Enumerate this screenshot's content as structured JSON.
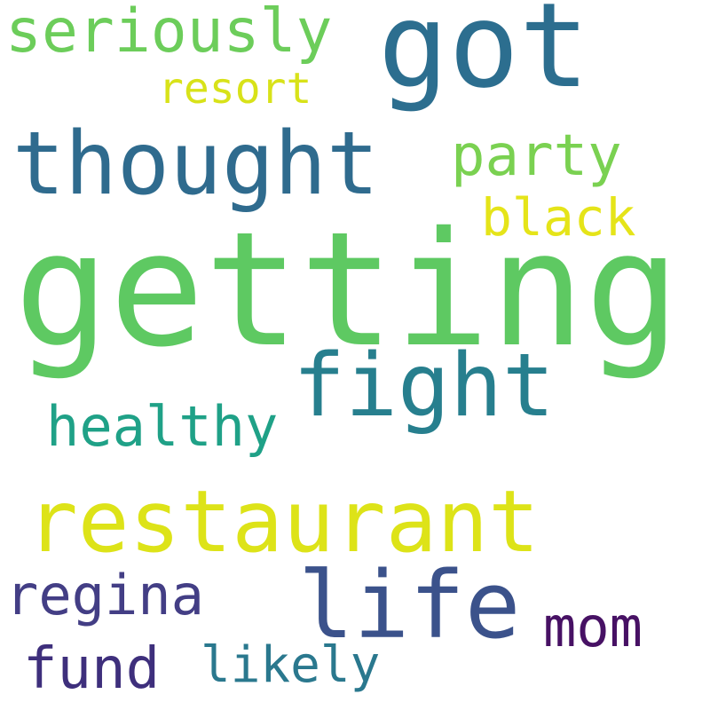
{
  "words": {
    "getting": {
      "text": "getting",
      "color": "#5ec962"
    },
    "got": {
      "text": "got",
      "color": "#2c6e8f"
    },
    "thought": {
      "text": "thought",
      "color": "#2f6b8e"
    },
    "restaurant": {
      "text": "restaurant",
      "color": "#dde318"
    },
    "life": {
      "text": "life",
      "color": "#3b528b"
    },
    "fight": {
      "text": "fight",
      "color": "#277f8e"
    },
    "seriously": {
      "text": "seriously",
      "color": "#6ccd5a"
    },
    "party": {
      "text": "party",
      "color": "#7ad151"
    },
    "healthy": {
      "text": "healthy",
      "color": "#1fa187"
    },
    "regina": {
      "text": "regina",
      "color": "#433e85"
    },
    "black": {
      "text": "black",
      "color": "#e5e419"
    },
    "mom": {
      "text": "mom",
      "color": "#471164"
    },
    "fund": {
      "text": "fund",
      "color": "#3e2f7c"
    },
    "likely": {
      "text": "likely",
      "color": "#2a788e"
    },
    "resort": {
      "text": "resort",
      "color": "#d8e219"
    }
  }
}
